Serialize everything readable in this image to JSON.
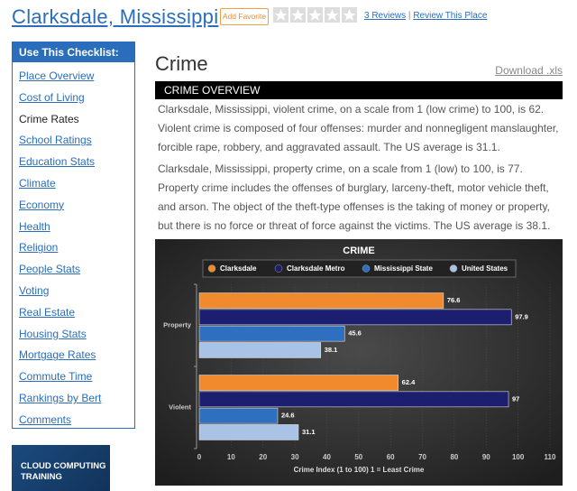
{
  "header": {
    "title": "Clarksdale, Mississippi",
    "favorite": "Add Favorite",
    "reviews": "3 Reviews",
    "separator": "|",
    "review_link": "Review This Place"
  },
  "sidebar": {
    "title": "Use This Checklist:",
    "items": [
      "Place Overview",
      "Cost of Living",
      "Crime Rates",
      "School Ratings",
      "Education Stats",
      "Climate",
      "Economy",
      "Health",
      "Religion",
      "People Stats",
      "Voting",
      "Real Estate",
      "Housing Stats",
      "Mortgage Rates",
      "Commute Time",
      "Rankings by Bert",
      "Comments"
    ]
  },
  "ad": {
    "text": "CLOUD COMPUTING TRAINING"
  },
  "content": {
    "heading": "Crime",
    "download": "Download .xls",
    "section": "CRIME OVERVIEW",
    "paragraphs": [
      "Clarksdale, Mississippi, violent crime, on a scale from 1 (low crime) to 100, is 62. Violent crime is composed of four offenses: murder and nonnegligent manslaughter, forcible rape, robbery, and aggravated assault. The US average is 31.1.",
      "Clarksdale, Mississippi, property crime, on a scale from 1 (low) to 100, is 77. Property crime includes the offenses of burglary, larceny-theft, motor vehicle theft, and arson. The object of the theft-type offenses is the taking of money or property, but there is no force or threat of force against the victims. The US average is 38.1."
    ]
  },
  "chart_data": {
    "type": "bar",
    "orientation": "horizontal",
    "title": "CRIME",
    "xlabel": "Crime Index (1 to 100) 1 = Least Crime",
    "categories": [
      "Property",
      "Violent"
    ],
    "series": [
      {
        "name": "Clarksdale",
        "color": "#f08a2c",
        "values": [
          76.6,
          62.4
        ]
      },
      {
        "name": "Clarksdale Metro",
        "color": "#1c1f70",
        "values": [
          97.9,
          97
        ]
      },
      {
        "name": "Mississippi State",
        "color": "#2f6fc0",
        "values": [
          45.6,
          24.6
        ]
      },
      {
        "name": "United States",
        "color": "#a9c3e6",
        "values": [
          38.1,
          31.1
        ]
      }
    ],
    "xlim": [
      0,
      110
    ],
    "xticks": [
      0,
      10,
      20,
      30,
      40,
      50,
      60,
      70,
      80,
      90,
      100,
      110
    ],
    "grid": true,
    "legend": "top"
  }
}
